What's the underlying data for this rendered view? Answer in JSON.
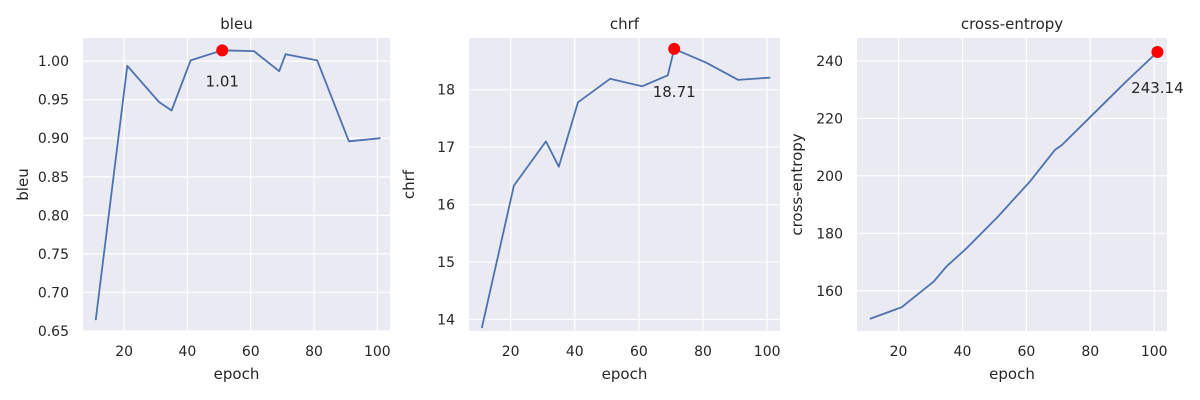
{
  "chart_data": [
    {
      "type": "line",
      "title": "bleu",
      "xlabel": "epoch",
      "ylabel": "bleu",
      "xlim": [
        7,
        104
      ],
      "ylim": [
        0.65,
        1.03
      ],
      "xticks": [
        20,
        40,
        60,
        80,
        100
      ],
      "yticks": [
        0.65,
        0.7,
        0.75,
        0.8,
        0.85,
        0.9,
        0.95,
        1.0
      ],
      "tick_decimals": 2,
      "grid": true,
      "color": "#4c72b0",
      "x": [
        11,
        21,
        31,
        35,
        41,
        51,
        61,
        69,
        71,
        81,
        91,
        101
      ],
      "y": [
        0.664,
        0.994,
        0.947,
        0.936,
        1.001,
        1.014,
        1.013,
        0.987,
        1.009,
        1.001,
        0.896,
        0.9
      ],
      "best": {
        "x": 51,
        "y": 1.014,
        "label": "1.01",
        "color": "#ff0000"
      }
    },
    {
      "type": "line",
      "title": "chrf",
      "xlabel": "epoch",
      "ylabel": "chrf",
      "xlim": [
        7,
        104
      ],
      "ylim": [
        13.8,
        18.9
      ],
      "xticks": [
        20,
        40,
        60,
        80,
        100
      ],
      "yticks": [
        14,
        15,
        16,
        17,
        18
      ],
      "tick_decimals": 0,
      "grid": true,
      "color": "#4c72b0",
      "x": [
        11,
        21,
        31,
        35,
        41,
        51,
        61,
        69,
        71,
        81,
        91,
        101
      ],
      "y": [
        13.85,
        16.33,
        17.1,
        16.66,
        17.78,
        18.19,
        18.06,
        18.25,
        18.71,
        18.47,
        18.17,
        18.21
      ],
      "best": {
        "x": 71,
        "y": 18.71,
        "label": "18.71",
        "color": "#ff0000"
      }
    },
    {
      "type": "line",
      "title": "cross-entropy",
      "xlabel": "epoch",
      "ylabel": "cross-entropy",
      "xlim": [
        7,
        104
      ],
      "ylim": [
        146,
        248
      ],
      "xticks": [
        20,
        40,
        60,
        80,
        100
      ],
      "yticks": [
        160,
        180,
        200,
        220,
        240
      ],
      "tick_decimals": 0,
      "grid": true,
      "color": "#4c72b0",
      "x": [
        11,
        21,
        31,
        35,
        41,
        51,
        61,
        69,
        71,
        81,
        91,
        101
      ],
      "y": [
        150.2,
        154.3,
        163.2,
        168.5,
        174.5,
        185.7,
        197.9,
        209.1,
        210.6,
        221.6,
        232.6,
        243.14
      ],
      "best": {
        "x": 101,
        "y": 243.14,
        "label": "243.14",
        "color": "#ff0000"
      }
    }
  ]
}
